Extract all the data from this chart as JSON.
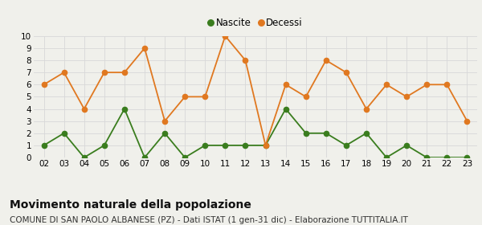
{
  "years": [
    "02",
    "03",
    "04",
    "05",
    "06",
    "07",
    "08",
    "09",
    "10",
    "11",
    "12",
    "13",
    "14",
    "15",
    "16",
    "17",
    "18",
    "19",
    "20",
    "21",
    "22",
    "23"
  ],
  "nascite": [
    1,
    2,
    0,
    1,
    4,
    0,
    2,
    0,
    1,
    1,
    1,
    1,
    4,
    2,
    2,
    1,
    2,
    0,
    1,
    0,
    0,
    0
  ],
  "decessi": [
    6,
    7,
    4,
    7,
    7,
    9,
    3,
    5,
    5,
    10,
    8,
    1,
    6,
    5,
    8,
    7,
    4,
    6,
    5,
    6,
    6,
    3
  ],
  "nascite_color": "#3a7d1e",
  "decessi_color": "#e07820",
  "nascite_label": "Nascite",
  "decessi_label": "Decessi",
  "ylim": [
    0,
    10
  ],
  "yticks": [
    0,
    1,
    2,
    3,
    4,
    5,
    6,
    7,
    8,
    9,
    10
  ],
  "title": "Movimento naturale della popolazione",
  "subtitle": "COMUNE DI SAN PAOLO ALBANESE (PZ) - Dati ISTAT (1 gen-31 dic) - Elaborazione TUTTITALIA.IT",
  "title_fontsize": 10,
  "subtitle_fontsize": 7.5,
  "bg_color": "#f0f0eb",
  "grid_color": "#d8d8d8",
  "marker_size": 4.5,
  "linewidth": 1.3
}
